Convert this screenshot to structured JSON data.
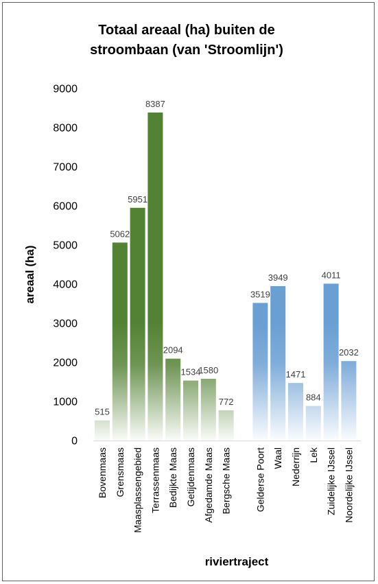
{
  "chart_data": {
    "type": "bar",
    "title_lines": [
      "Totaal areaal (ha) buiten de",
      "stroombaan (van 'Stroomlijn')"
    ],
    "xlabel": "riviertraject",
    "ylabel": "areaal (ha)",
    "ylim": [
      0,
      9000
    ],
    "yticks": [
      0,
      1000,
      2000,
      3000,
      4000,
      5000,
      6000,
      7000,
      8000,
      9000
    ],
    "grid": false,
    "legend": "none",
    "groups": [
      {
        "color": "#548235",
        "categories": [
          "Bovenmaas",
          "Grensmaas",
          "Maasplassengebied",
          "Terrassenmaas",
          "Bedijkte Maas",
          "Getijdenmaas",
          "Afgedamde Maas",
          "Bergsche Maas"
        ],
        "values": [
          515,
          5062,
          5951,
          8387,
          2094,
          1534,
          1580,
          772
        ]
      },
      {
        "color": "#6a9fd4",
        "categories": [
          "Gelderse Poort",
          "Waal",
          "Nederrijn",
          "Lek",
          "Zuidelijke IJssel",
          "Noordelijke IJssel"
        ],
        "values": [
          3519,
          3949,
          1471,
          884,
          4011,
          2032
        ]
      }
    ]
  }
}
